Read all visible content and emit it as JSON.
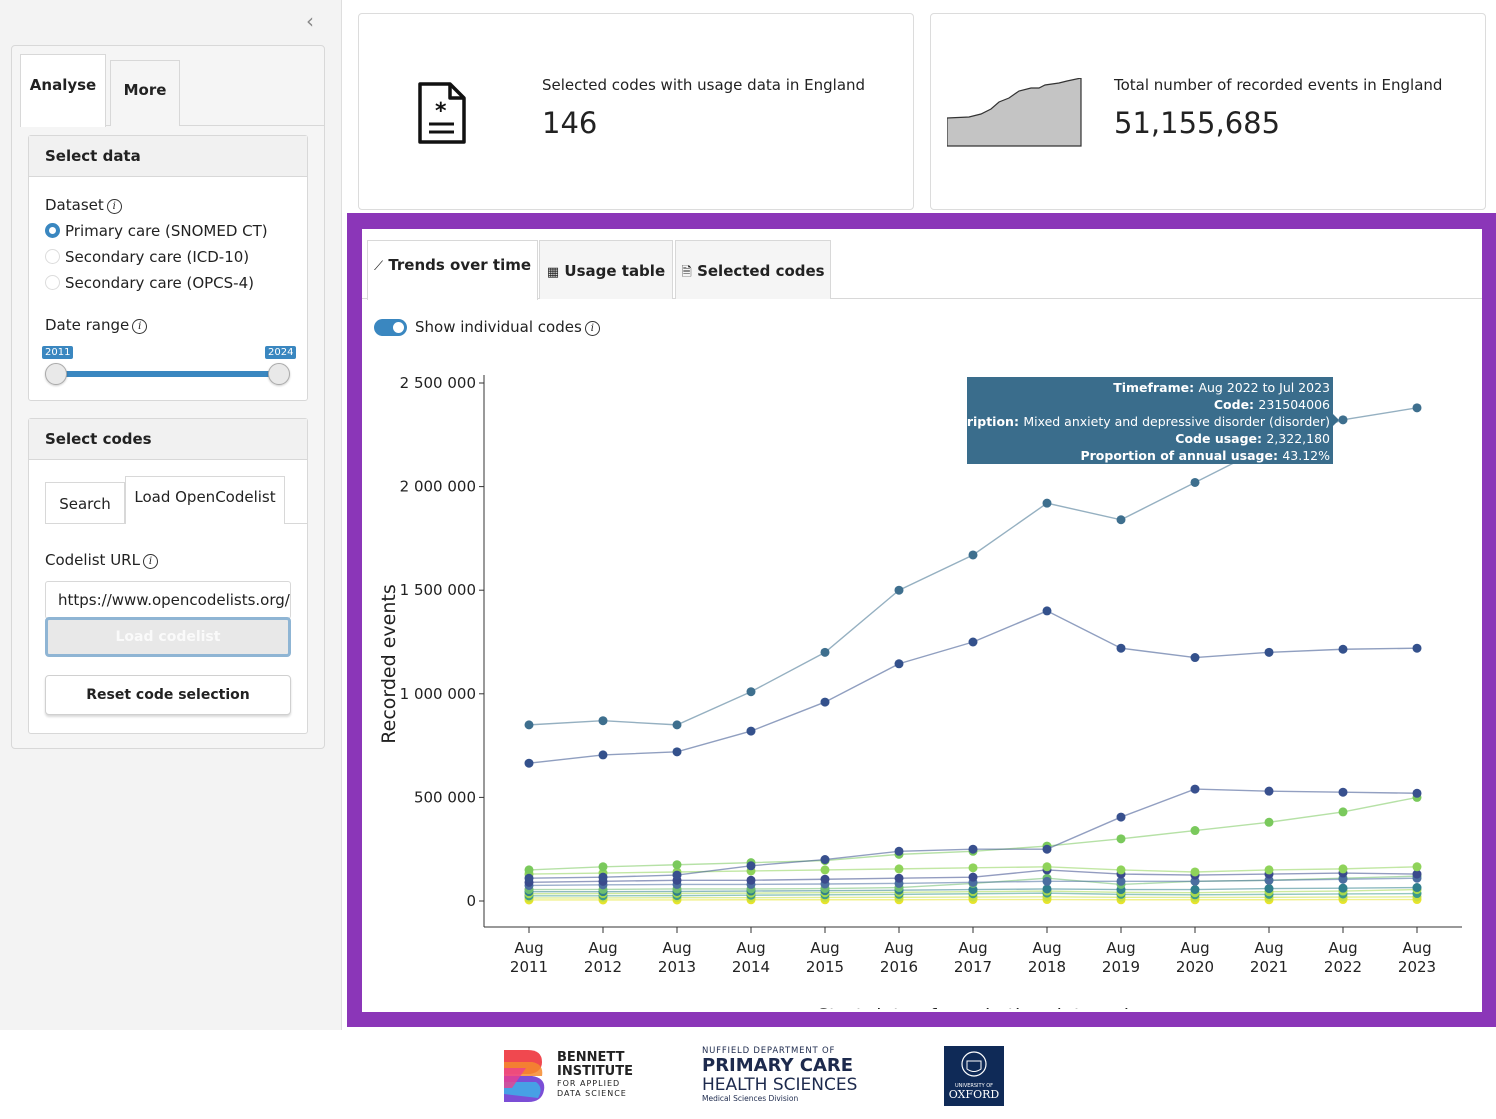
{
  "sidebar": {
    "collapse_icon": "chevron-left-icon",
    "tabs": [
      {
        "label": "Analyse"
      },
      {
        "label": "More"
      }
    ],
    "select_data": {
      "header": "Select data",
      "dataset_label": "Dataset",
      "datasets": [
        {
          "label": "Primary care (SNOMED CT)",
          "selected": true
        },
        {
          "label": "Secondary care (ICD-10)",
          "selected": false
        },
        {
          "label": "Secondary care (OPCS-4)",
          "selected": false
        }
      ],
      "date_range_label": "Date range",
      "date_range": {
        "min": "2011",
        "max": "2024"
      }
    },
    "select_codes": {
      "header": "Select codes",
      "tabs": [
        {
          "label": "Search"
        },
        {
          "label": "Load OpenCodelist"
        }
      ],
      "codelist_url_label": "Codelist URL",
      "codelist_url_value": "https://www.opencodelists.org/c",
      "load_button": "Load codelist",
      "reset_button": "Reset code selection"
    }
  },
  "value_boxes": [
    {
      "title": "Selected codes with usage data in England",
      "value": "146",
      "icon": "document-asterisk-icon"
    },
    {
      "title": "Total number of recorded events in England",
      "value": "51,155,685",
      "icon": "sparkline-area-icon"
    }
  ],
  "main": {
    "tabs": [
      {
        "label": "Trends over time",
        "icon": "line-chart-icon"
      },
      {
        "label": "Usage table",
        "icon": "table-icon"
      },
      {
        "label": "Selected codes",
        "icon": "file-icon"
      }
    ],
    "toggle_label": "Show individual codes",
    "toggle_on": true
  },
  "tooltip": {
    "rows": [
      {
        "key": "Timeframe:",
        "value": "Aug 2022 to Jul 2023"
      },
      {
        "key": "Code:",
        "value": "231504006"
      },
      {
        "key": "Description:",
        "value": "Mixed anxiety and depressive disorder (disorder)"
      },
      {
        "key": "Code usage:",
        "value": "2,322,180"
      },
      {
        "key": "Proportion of annual usage:",
        "value": "43.12%"
      }
    ],
    "color": "#3a6d8c"
  },
  "chart_data": {
    "type": "line",
    "xlabel": "Start date of yearly time interval",
    "ylabel": "Recorded events",
    "ylim": [
      0,
      2500000
    ],
    "yticks": [
      0,
      500000,
      1000000,
      1500000,
      2000000,
      2500000
    ],
    "ytick_labels": [
      "0",
      "500 000",
      "1 000 000",
      "1 500 000",
      "2 000 000",
      "2 500 000"
    ],
    "categories": [
      "Aug\n2011",
      "Aug\n2012",
      "Aug\n2013",
      "Aug\n2014",
      "Aug\n2015",
      "Aug\n2016",
      "Aug\n2017",
      "Aug\n2018",
      "Aug\n2019",
      "Aug\n2020",
      "Aug\n2021",
      "Aug\n2022",
      "Aug\n2023"
    ],
    "series": [
      {
        "color": "#3e6f8e",
        "values": [
          850000,
          870000,
          850000,
          1010000,
          1200000,
          1500000,
          1670000,
          1920000,
          1840000,
          2020000,
          2200000,
          2322180,
          2380000
        ]
      },
      {
        "color": "#34518c",
        "values": [
          665000,
          705000,
          720000,
          820000,
          960000,
          1145000,
          1250000,
          1400000,
          1220000,
          1175000,
          1200000,
          1215000,
          1220000
        ]
      },
      {
        "color": "#38508e",
        "values": [
          110000,
          115000,
          125000,
          170000,
          200000,
          240000,
          250000,
          250000,
          405000,
          540000,
          530000,
          525000,
          520000
        ]
      },
      {
        "color": "#7ac95c",
        "values": [
          150000,
          165000,
          175000,
          185000,
          195000,
          225000,
          240000,
          265000,
          300000,
          340000,
          380000,
          430000,
          500000
        ]
      },
      {
        "color": "#8fd35a",
        "values": [
          130000,
          135000,
          140000,
          145000,
          150000,
          155000,
          160000,
          165000,
          150000,
          140000,
          150000,
          155000,
          165000
        ]
      },
      {
        "color": "#3a4a8c",
        "values": [
          90000,
          95000,
          100000,
          100000,
          105000,
          110000,
          115000,
          150000,
          130000,
          125000,
          130000,
          135000,
          130000
        ]
      },
      {
        "color": "#4b6ea0",
        "values": [
          75000,
          78000,
          80000,
          80000,
          82000,
          85000,
          90000,
          95000,
          95000,
          95000,
          100000,
          105000,
          110000
        ]
      },
      {
        "color": "#6dbd6e",
        "values": [
          55000,
          56000,
          58000,
          58000,
          60000,
          65000,
          85000,
          110000,
          80000,
          95000,
          100000,
          110000,
          120000
        ]
      },
      {
        "color": "#2f7f8d",
        "values": [
          45000,
          45000,
          46000,
          48000,
          50000,
          52000,
          55000,
          58000,
          55000,
          55000,
          60000,
          62000,
          65000
        ]
      },
      {
        "color": "#a6d84d",
        "values": [
          35000,
          36000,
          37000,
          38000,
          40000,
          42000,
          45000,
          48000,
          42000,
          40000,
          45000,
          48000,
          55000
        ]
      },
      {
        "color": "#3c9a8a",
        "values": [
          25000,
          25000,
          26000,
          28000,
          30000,
          32000,
          35000,
          38000,
          32000,
          30000,
          32000,
          34000,
          36000
        ]
      },
      {
        "color": "#c9e03e",
        "values": [
          15000,
          15000,
          16000,
          16000,
          17000,
          18000,
          19000,
          20000,
          18000,
          17000,
          18000,
          19000,
          20000
        ]
      },
      {
        "color": "#e6e42c",
        "values": [
          5000,
          5000,
          5000,
          6000,
          6000,
          6000,
          7000,
          7000,
          6000,
          6000,
          6000,
          7000,
          7000
        ]
      }
    ],
    "grid": false,
    "legend": "none"
  },
  "footer": {
    "bennett": [
      "BENNETT",
      "INSTITUTE",
      "FOR APPLIED",
      "DATA SCIENCE"
    ],
    "nuffield": [
      "NUFFIELD DEPARTMENT OF",
      "PRIMARY CARE",
      "HEALTH SCIENCES",
      "Medical Sciences Division"
    ],
    "oxford": [
      "UNIVERSITY OF",
      "OXFORD"
    ]
  }
}
